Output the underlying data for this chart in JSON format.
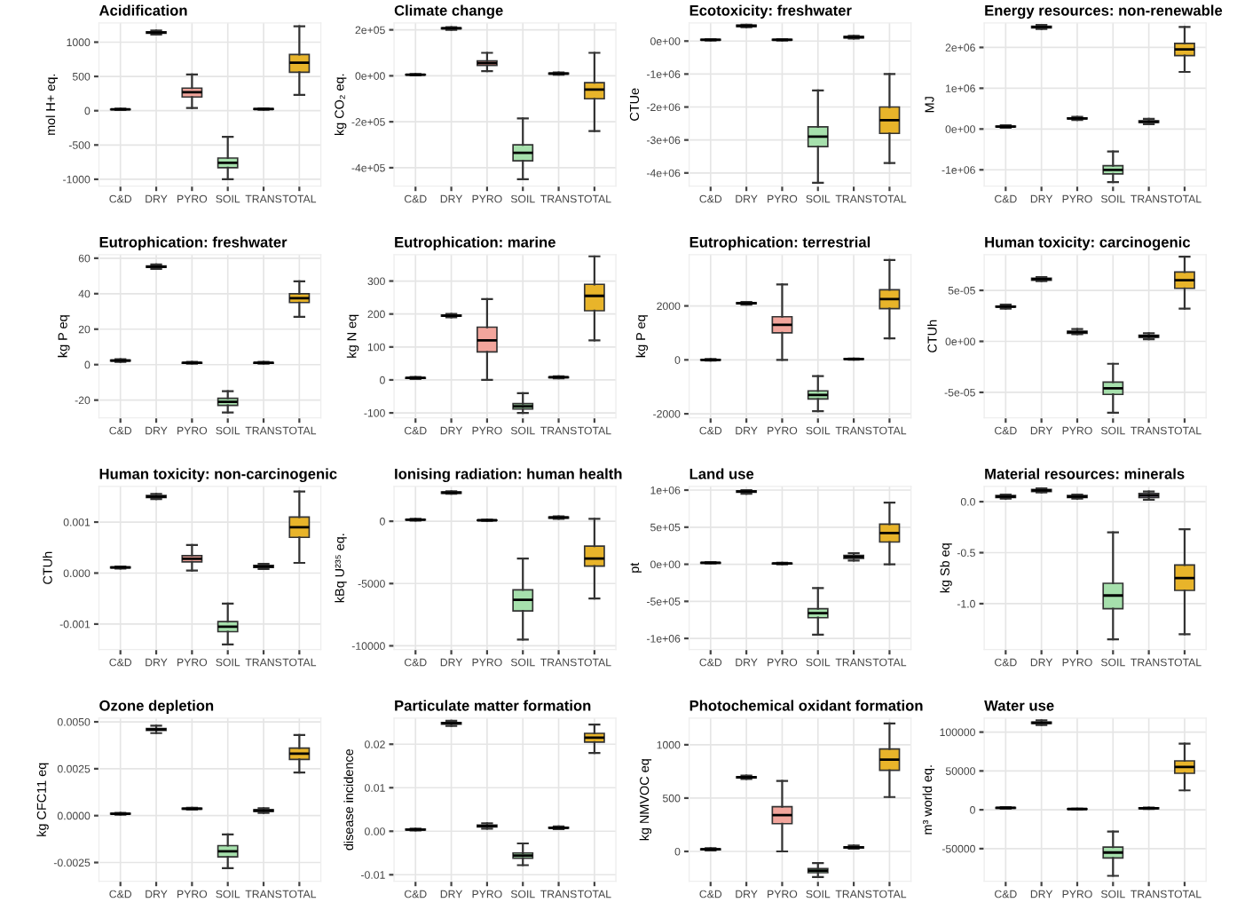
{
  "chart_data": [
    {
      "type": "box",
      "title": "Acidification",
      "ylabel": "mol H+ eq.",
      "categories": [
        "C&D",
        "DRY",
        "PYRO",
        "SOIL",
        "TRANS",
        "TOTAL"
      ],
      "colors": [
        "#e6b8b3",
        "#d6d6d6",
        "#f2a59c",
        "#a6e0ac",
        "#d6c4ea",
        "#e8b42a"
      ],
      "grid": true,
      "ylim": [
        -1100,
        1280
      ],
      "yticks": [
        -1000,
        -500,
        0,
        500,
        1000
      ],
      "boxes": [
        {
          "low": 10,
          "q1": 18,
          "median": 20,
          "q3": 22,
          "high": 30
        },
        {
          "low": 1110,
          "q1": 1130,
          "median": 1140,
          "q3": 1150,
          "high": 1170
        },
        {
          "low": 40,
          "q1": 200,
          "median": 270,
          "q3": 330,
          "high": 530
        },
        {
          "low": -1000,
          "q1": -830,
          "median": -760,
          "q3": -690,
          "high": -380
        },
        {
          "low": 15,
          "q1": 20,
          "median": 25,
          "q3": 30,
          "high": 35
        },
        {
          "low": 230,
          "q1": 560,
          "median": 700,
          "q3": 820,
          "high": 1230
        }
      ]
    },
    {
      "type": "box",
      "title": "Climate change",
      "ylabel": "kg CO₂ eq.",
      "categories": [
        "C&D",
        "DRY",
        "PYRO",
        "SOIL",
        "TRANS",
        "TOTAL"
      ],
      "colors": [
        "#e6b8b3",
        "#d6d6d6",
        "#f2a59c",
        "#a6e0ac",
        "#d6c4ea",
        "#e8b42a"
      ],
      "grid": true,
      "ylim": [
        -480000,
        230000
      ],
      "yticks": [
        {
          "value": -400000,
          "label": "-4e+05"
        },
        {
          "value": -200000,
          "label": "-2e+05"
        },
        {
          "value": 0,
          "label": "0e+00"
        },
        {
          "value": 200000,
          "label": "2e+05"
        }
      ],
      "boxes": [
        {
          "low": 2000,
          "q1": 4000,
          "median": 5000,
          "q3": 6000,
          "high": 8000
        },
        {
          "low": 200000,
          "q1": 205000,
          "median": 207000,
          "q3": 209000,
          "high": 212000
        },
        {
          "low": 20000,
          "q1": 45000,
          "median": 55000,
          "q3": 65000,
          "high": 100000
        },
        {
          "low": -450000,
          "q1": -370000,
          "median": -335000,
          "q3": -300000,
          "high": -185000
        },
        {
          "low": 5000,
          "q1": 8000,
          "median": 10000,
          "q3": 12000,
          "high": 15000
        },
        {
          "low": -240000,
          "q1": -100000,
          "median": -60000,
          "q3": -30000,
          "high": 100000
        }
      ]
    },
    {
      "type": "box",
      "title": "Ecotoxicity: freshwater",
      "ylabel": "CTUe",
      "categories": [
        "C&D",
        "DRY",
        "PYRO",
        "SOIL",
        "TRANS",
        "TOTAL"
      ],
      "colors": [
        "#e6b8b3",
        "#d6d6d6",
        "#f2a59c",
        "#a6e0ac",
        "#d6c4ea",
        "#e8b42a"
      ],
      "grid": true,
      "ylim": [
        -4400000,
        550000
      ],
      "yticks": [
        {
          "value": -4000000,
          "label": "-4e+06"
        },
        {
          "value": -3000000,
          "label": "-3e+06"
        },
        {
          "value": -2000000,
          "label": "-2e+06"
        },
        {
          "value": -1000000,
          "label": "-1e+06"
        },
        {
          "value": 0,
          "label": "0e+00"
        }
      ],
      "boxes": [
        {
          "low": 20000,
          "q1": 30000,
          "median": 40000,
          "q3": 50000,
          "high": 60000
        },
        {
          "low": 420000,
          "q1": 440000,
          "median": 460000,
          "q3": 480000,
          "high": 500000
        },
        {
          "low": 20000,
          "q1": 30000,
          "median": 40000,
          "q3": 50000,
          "high": 60000
        },
        {
          "low": -4300000,
          "q1": -3200000,
          "median": -2900000,
          "q3": -2600000,
          "high": -1500000
        },
        {
          "low": 80000,
          "q1": 100000,
          "median": 120000,
          "q3": 140000,
          "high": 160000
        },
        {
          "low": -3700000,
          "q1": -2800000,
          "median": -2400000,
          "q3": -2000000,
          "high": -1000000
        }
      ]
    },
    {
      "type": "box",
      "title": "Energy resources: non-renewable",
      "ylabel": "MJ",
      "categories": [
        "C&D",
        "DRY",
        "PYRO",
        "SOIL",
        "TRANS",
        "TOTAL"
      ],
      "colors": [
        "#e6b8b3",
        "#d6d6d6",
        "#f2a59c",
        "#a6e0ac",
        "#d6c4ea",
        "#e8b42a"
      ],
      "grid": true,
      "ylim": [
        -1400000,
        2600000
      ],
      "yticks": [
        {
          "value": -1000000,
          "label": "-1e+06"
        },
        {
          "value": 0,
          "label": "0e+00"
        },
        {
          "value": 1000000,
          "label": "1e+06"
        },
        {
          "value": 2000000,
          "label": "2e+06"
        }
      ],
      "boxes": [
        {
          "low": 30000,
          "q1": 50000,
          "median": 60000,
          "q3": 70000,
          "high": 90000
        },
        {
          "low": 2450000,
          "q1": 2480000,
          "median": 2500000,
          "q3": 2520000,
          "high": 2550000
        },
        {
          "low": 220000,
          "q1": 250000,
          "median": 260000,
          "q3": 270000,
          "high": 300000
        },
        {
          "low": -1300000,
          "q1": -1100000,
          "median": -1000000,
          "q3": -900000,
          "high": -550000
        },
        {
          "low": 120000,
          "q1": 160000,
          "median": 180000,
          "q3": 200000,
          "high": 250000
        },
        {
          "low": 1400000,
          "q1": 1800000,
          "median": 1950000,
          "q3": 2100000,
          "high": 2500000
        }
      ]
    },
    {
      "type": "box",
      "title": "Eutrophication: freshwater",
      "ylabel": "kg P eq",
      "categories": [
        "C&D",
        "DRY",
        "PYRO",
        "SOIL",
        "TRANS",
        "TOTAL"
      ],
      "colors": [
        "#e6b8b3",
        "#d6d6d6",
        "#f2a59c",
        "#a6e0ac",
        "#d6c4ea",
        "#e8b42a"
      ],
      "grid": true,
      "ylim": [
        -30,
        62
      ],
      "yticks": [
        -20,
        0,
        20,
        40,
        60
      ],
      "boxes": [
        {
          "low": 1.5,
          "q1": 2,
          "median": 2.3,
          "q3": 2.6,
          "high": 3
        },
        {
          "low": 54,
          "q1": 54.8,
          "median": 55.2,
          "q3": 55.6,
          "high": 56.5
        },
        {
          "low": 0.5,
          "q1": 0.8,
          "median": 1,
          "q3": 1.2,
          "high": 1.5
        },
        {
          "low": -27,
          "q1": -23,
          "median": -21,
          "q3": -19,
          "high": -15
        },
        {
          "low": 0.5,
          "q1": 0.8,
          "median": 1,
          "q3": 1.2,
          "high": 1.5
        },
        {
          "low": 27,
          "q1": 35,
          "median": 37.5,
          "q3": 40,
          "high": 47
        }
      ]
    },
    {
      "type": "box",
      "title": "Eutrophication: marine",
      "ylabel": "kg N eq",
      "categories": [
        "C&D",
        "DRY",
        "PYRO",
        "SOIL",
        "TRANS",
        "TOTAL"
      ],
      "colors": [
        "#e6b8b3",
        "#d6d6d6",
        "#f2a59c",
        "#a6e0ac",
        "#d6c4ea",
        "#e8b42a"
      ],
      "grid": true,
      "ylim": [
        -115,
        380
      ],
      "yticks": [
        -100,
        0,
        100,
        200,
        300
      ],
      "boxes": [
        {
          "low": 3,
          "q1": 5,
          "median": 6,
          "q3": 7,
          "high": 9
        },
        {
          "low": 190,
          "q1": 193,
          "median": 195,
          "q3": 197,
          "high": 200
        },
        {
          "low": 0,
          "q1": 85,
          "median": 120,
          "q3": 160,
          "high": 245
        },
        {
          "low": -100,
          "q1": -88,
          "median": -80,
          "q3": -72,
          "high": -40
        },
        {
          "low": 5,
          "q1": 7,
          "median": 8,
          "q3": 9,
          "high": 11
        },
        {
          "low": 120,
          "q1": 210,
          "median": 255,
          "q3": 290,
          "high": 375
        }
      ]
    },
    {
      "type": "box",
      "title": "Eutrophication: terrestrial",
      "ylabel": "kg P eq",
      "categories": [
        "C&D",
        "DRY",
        "PYRO",
        "SOIL",
        "TRANS",
        "TOTAL"
      ],
      "colors": [
        "#e6b8b3",
        "#d6d6d6",
        "#f2a59c",
        "#a6e0ac",
        "#d6c4ea",
        "#e8b42a"
      ],
      "grid": true,
      "ylim": [
        -2150,
        3900
      ],
      "yticks": [
        -2000,
        0,
        2000
      ],
      "boxes": [
        {
          "low": -30,
          "q1": -10,
          "median": 0,
          "q3": 10,
          "high": 30
        },
        {
          "low": 2050,
          "q1": 2080,
          "median": 2100,
          "q3": 2120,
          "high": 2150
        },
        {
          "low": 0,
          "q1": 1000,
          "median": 1300,
          "q3": 1600,
          "high": 2800
        },
        {
          "low": -1900,
          "q1": -1450,
          "median": -1300,
          "q3": -1150,
          "high": -600
        },
        {
          "low": 10,
          "q1": 20,
          "median": 30,
          "q3": 40,
          "high": 50
        },
        {
          "low": 800,
          "q1": 1900,
          "median": 2250,
          "q3": 2600,
          "high": 3700
        }
      ]
    },
    {
      "type": "box",
      "title": "Human toxicity: carcinogenic",
      "ylabel": "CTUh",
      "categories": [
        "C&D",
        "DRY",
        "PYRO",
        "SOIL",
        "TRANS",
        "TOTAL"
      ],
      "colors": [
        "#e6b8b3",
        "#d6d6d6",
        "#f2a59c",
        "#a6e0ac",
        "#d6c4ea",
        "#e8b42a"
      ],
      "grid": true,
      "ylim": [
        -7.5e-05,
        8.5e-05
      ],
      "yticks": [
        {
          "value": -5e-05,
          "label": "-5e-05"
        },
        {
          "value": 0,
          "label": "0e+00"
        },
        {
          "value": 5e-05,
          "label": "5e-05"
        }
      ],
      "boxes": [
        {
          "low": 3.2e-05,
          "q1": 3.35e-05,
          "median": 3.4e-05,
          "q3": 3.45e-05,
          "high": 3.6e-05
        },
        {
          "low": 5.9e-05,
          "q1": 6e-05,
          "median": 6.1e-05,
          "q3": 6.2e-05,
          "high": 6.3e-05
        },
        {
          "low": 7e-06,
          "q1": 8e-06,
          "median": 9e-06,
          "q3": 1e-05,
          "high": 1.2e-05
        },
        {
          "low": -7e-05,
          "q1": -5.2e-05,
          "median": -4.6e-05,
          "q3": -4e-05,
          "high": -2.2e-05
        },
        {
          "low": 2e-06,
          "q1": 4e-06,
          "median": 5e-06,
          "q3": 6e-06,
          "high": 8e-06
        },
        {
          "low": 3.2e-05,
          "q1": 5.2e-05,
          "median": 6e-05,
          "q3": 6.8e-05,
          "high": 8.3e-05
        }
      ]
    },
    {
      "type": "box",
      "title": "Human toxicity: non-carcinogenic",
      "ylabel": "CTUh",
      "categories": [
        "C&D",
        "DRY",
        "PYRO",
        "SOIL",
        "TRANS",
        "TOTAL"
      ],
      "colors": [
        "#e6b8b3",
        "#d6d6d6",
        "#f2a59c",
        "#a6e0ac",
        "#d6c4ea",
        "#e8b42a"
      ],
      "grid": true,
      "ylim": [
        -0.0015,
        0.0017
      ],
      "yticks": [
        -0.001,
        {
          "value": 0,
          "label": "0.000"
        },
        0.001
      ],
      "boxes": [
        {
          "low": 9e-05,
          "q1": 0.0001,
          "median": 0.00011,
          "q3": 0.00012,
          "high": 0.00013
        },
        {
          "low": 0.00145,
          "q1": 0.00148,
          "median": 0.0015,
          "q3": 0.00152,
          "high": 0.00155
        },
        {
          "low": 5e-05,
          "q1": 0.00022,
          "median": 0.00028,
          "q3": 0.00034,
          "high": 0.00055
        },
        {
          "low": -0.0014,
          "q1": -0.00115,
          "median": -0.00105,
          "q3": -0.00095,
          "high": -0.0006
        },
        {
          "low": 8e-05,
          "q1": 0.00011,
          "median": 0.00013,
          "q3": 0.00015,
          "high": 0.00018
        },
        {
          "low": 0.0002,
          "q1": 0.0007,
          "median": 0.0009,
          "q3": 0.0011,
          "high": 0.0016
        }
      ]
    },
    {
      "type": "box",
      "title": "Ionising radiation: human health",
      "ylabel": "kBq U²³⁵ eq.",
      "categories": [
        "C&D",
        "DRY",
        "PYRO",
        "SOIL",
        "TRANS",
        "TOTAL"
      ],
      "colors": [
        "#e6b8b3",
        "#d6d6d6",
        "#f2a59c",
        "#a6e0ac",
        "#d6c4ea",
        "#e8b42a"
      ],
      "grid": true,
      "ylim": [
        -10300,
        2800
      ],
      "yticks": [
        -10000,
        -5000,
        0
      ],
      "boxes": [
        {
          "low": 50,
          "q1": 100,
          "median": 120,
          "q3": 140,
          "high": 200
        },
        {
          "low": 2200,
          "q1": 2250,
          "median": 2300,
          "q3": 2350,
          "high": 2400
        },
        {
          "low": 30,
          "q1": 60,
          "median": 80,
          "q3": 100,
          "high": 130
        },
        {
          "low": -9500,
          "q1": -7200,
          "median": -6300,
          "q3": -5500,
          "high": -3000
        },
        {
          "low": 200,
          "q1": 250,
          "median": 300,
          "q3": 350,
          "high": 400
        },
        {
          "low": -6200,
          "q1": -3600,
          "median": -3000,
          "q3": -2000,
          "high": 200
        }
      ]
    },
    {
      "type": "box",
      "title": "Land use",
      "ylabel": "pt",
      "categories": [
        "C&D",
        "DRY",
        "PYRO",
        "SOIL",
        "TRANS",
        "TOTAL"
      ],
      "colors": [
        "#e6b8b3",
        "#d6d6d6",
        "#f2a59c",
        "#a6e0ac",
        "#d6c4ea",
        "#e8b42a"
      ],
      "grid": true,
      "ylim": [
        -1150000,
        1050000
      ],
      "yticks": [
        {
          "value": -1000000,
          "label": "-1e+06"
        },
        {
          "value": -500000,
          "label": "-5e+05"
        },
        {
          "value": 0,
          "label": "0e+00"
        },
        {
          "value": 500000,
          "label": "5e+05"
        },
        {
          "value": 1000000,
          "label": "1e+06"
        }
      ],
      "boxes": [
        {
          "low": 10000,
          "q1": 15000,
          "median": 20000,
          "q3": 25000,
          "high": 30000
        },
        {
          "low": 950000,
          "q1": 970000,
          "median": 980000,
          "q3": 990000,
          "high": 1000000
        },
        {
          "low": 0,
          "q1": 5000,
          "median": 10000,
          "q3": 15000,
          "high": 20000
        },
        {
          "low": -950000,
          "q1": -720000,
          "median": -660000,
          "q3": -600000,
          "high": -320000
        },
        {
          "low": 50000,
          "q1": 80000,
          "median": 100000,
          "q3": 120000,
          "high": 150000
        },
        {
          "low": 0,
          "q1": 300000,
          "median": 420000,
          "q3": 540000,
          "high": 830000
        }
      ]
    },
    {
      "type": "box",
      "title": "Material resources: minerals",
      "ylabel": "kg Sb eq",
      "categories": [
        "C&D",
        "DRY",
        "PYRO",
        "SOIL",
        "TRANS",
        "TOTAL"
      ],
      "colors": [
        "#e6b8b3",
        "#d6d6d6",
        "#f2a59c",
        "#a6e0ac",
        "#d6c4ea",
        "#e8b42a"
      ],
      "grid": true,
      "ylim": [
        -1.45,
        0.15
      ],
      "yticks": [
        {
          "value": -1.0,
          "label": "-1.0"
        },
        -0.5,
        {
          "value": 0.0,
          "label": "0.0"
        }
      ],
      "boxes": [
        {
          "low": 0.03,
          "q1": 0.04,
          "median": 0.05,
          "q3": 0.06,
          "high": 0.07
        },
        {
          "low": 0.09,
          "q1": 0.1,
          "median": 0.11,
          "q3": 0.12,
          "high": 0.13
        },
        {
          "low": 0.03,
          "q1": 0.04,
          "median": 0.05,
          "q3": 0.06,
          "high": 0.07
        },
        {
          "low": -1.35,
          "q1": -1.05,
          "median": -0.92,
          "q3": -0.8,
          "high": -0.3
        },
        {
          "low": 0.02,
          "q1": 0.04,
          "median": 0.06,
          "q3": 0.08,
          "high": 0.1
        },
        {
          "low": -1.3,
          "q1": -0.87,
          "median": -0.75,
          "q3": -0.62,
          "high": -0.27
        }
      ]
    },
    {
      "type": "box",
      "title": "Ozone depletion",
      "ylabel": "kg CFC11 eq",
      "categories": [
        "C&D",
        "DRY",
        "PYRO",
        "SOIL",
        "TRANS",
        "TOTAL"
      ],
      "colors": [
        "#e6b8b3",
        "#d6d6d6",
        "#f2a59c",
        "#a6e0ac",
        "#d6c4ea",
        "#e8b42a"
      ],
      "grid": true,
      "ylim": [
        -0.0035,
        0.0052
      ],
      "yticks": [
        -0.0025,
        {
          "value": 0,
          "label": "0.0000"
        },
        0.0025,
        {
          "value": 0.005,
          "label": "0.0050"
        }
      ],
      "boxes": [
        {
          "low": 5e-05,
          "q1": 8e-05,
          "median": 0.0001,
          "q3": 0.00012,
          "high": 0.00015
        },
        {
          "low": 0.0044,
          "q1": 0.00455,
          "median": 0.0046,
          "q3": 0.00465,
          "high": 0.0048
        },
        {
          "low": 0.00032,
          "q1": 0.00035,
          "median": 0.00037,
          "q3": 0.00039,
          "high": 0.00042
        },
        {
          "low": -0.0028,
          "q1": -0.0022,
          "median": -0.0019,
          "q3": -0.0016,
          "high": -0.001
        },
        {
          "low": 0.00015,
          "q1": 0.00023,
          "median": 0.00027,
          "q3": 0.00031,
          "high": 0.0004
        },
        {
          "low": 0.0023,
          "q1": 0.003,
          "median": 0.0033,
          "q3": 0.0036,
          "high": 0.0043
        }
      ]
    },
    {
      "type": "box",
      "title": "Particulate matter formation",
      "ylabel": "disease incidence",
      "categories": [
        "C&D",
        "DRY",
        "PYRO",
        "SOIL",
        "TRANS",
        "TOTAL"
      ],
      "colors": [
        "#e6b8b3",
        "#d6d6d6",
        "#f2a59c",
        "#a6e0ac",
        "#d6c4ea",
        "#e8b42a"
      ],
      "grid": true,
      "ylim": [
        -0.0115,
        0.026
      ],
      "yticks": [
        -0.01,
        {
          "value": 0,
          "label": "0.00"
        },
        0.01,
        0.02
      ],
      "boxes": [
        {
          "low": 0.0002,
          "q1": 0.0003,
          "median": 0.0004,
          "q3": 0.0005,
          "high": 0.0006
        },
        {
          "low": 0.0242,
          "q1": 0.0246,
          "median": 0.0248,
          "q3": 0.025,
          "high": 0.0254
        },
        {
          "low": 0.0006,
          "q1": 0.001,
          "median": 0.0012,
          "q3": 0.0014,
          "high": 0.0018
        },
        {
          "low": -0.0078,
          "q1": -0.0062,
          "median": -0.0056,
          "q3": -0.005,
          "high": -0.0028
        },
        {
          "low": 0.0005,
          "q1": 0.0007,
          "median": 0.0008,
          "q3": 0.0009,
          "high": 0.0011
        },
        {
          "low": 0.018,
          "q1": 0.0205,
          "median": 0.0215,
          "q3": 0.0225,
          "high": 0.0245
        }
      ]
    },
    {
      "type": "box",
      "title": "Photochemical oxidant formation",
      "ylabel": "kg NMVOC eq",
      "categories": [
        "C&D",
        "DRY",
        "PYRO",
        "SOIL",
        "TRANS",
        "TOTAL"
      ],
      "colors": [
        "#e6b8b3",
        "#d6d6d6",
        "#f2a59c",
        "#a6e0ac",
        "#d6c4ea",
        "#e8b42a"
      ],
      "grid": true,
      "ylim": [
        -280,
        1250
      ],
      "yticks": [
        0,
        500,
        1000
      ],
      "boxes": [
        {
          "low": 10,
          "q1": 15,
          "median": 20,
          "q3": 25,
          "high": 30
        },
        {
          "low": 680,
          "q1": 690,
          "median": 695,
          "q3": 700,
          "high": 710
        },
        {
          "low": 0,
          "q1": 260,
          "median": 340,
          "q3": 420,
          "high": 660
        },
        {
          "low": -240,
          "q1": -200,
          "median": -180,
          "q3": -160,
          "high": -110
        },
        {
          "low": 25,
          "q1": 32,
          "median": 38,
          "q3": 44,
          "high": 55
        },
        {
          "low": 510,
          "q1": 760,
          "median": 860,
          "q3": 960,
          "high": 1200
        }
      ]
    },
    {
      "type": "box",
      "title": "Water use",
      "ylabel": "m³ world eq.",
      "categories": [
        "C&D",
        "DRY",
        "PYRO",
        "SOIL",
        "TRANS",
        "TOTAL"
      ],
      "colors": [
        "#e6b8b3",
        "#d6d6d6",
        "#f2a59c",
        "#a6e0ac",
        "#d6c4ea",
        "#e8b42a"
      ],
      "grid": true,
      "ylim": [
        -92000,
        118000
      ],
      "yticks": [
        -50000,
        0,
        50000,
        100000
      ],
      "boxes": [
        {
          "low": 1500,
          "q1": 2000,
          "median": 2500,
          "q3": 3000,
          "high": 3500
        },
        {
          "low": 109000,
          "q1": 111000,
          "median": 112000,
          "q3": 113000,
          "high": 115000
        },
        {
          "low": 500,
          "q1": 800,
          "median": 1000,
          "q3": 1200,
          "high": 1500
        },
        {
          "low": -85000,
          "q1": -62000,
          "median": -55000,
          "q3": -48000,
          "high": -28000
        },
        {
          "low": 1000,
          "q1": 1500,
          "median": 2000,
          "q3": 2500,
          "high": 3000
        },
        {
          "low": 25000,
          "q1": 47000,
          "median": 55000,
          "q3": 63000,
          "high": 85000
        }
      ]
    }
  ]
}
